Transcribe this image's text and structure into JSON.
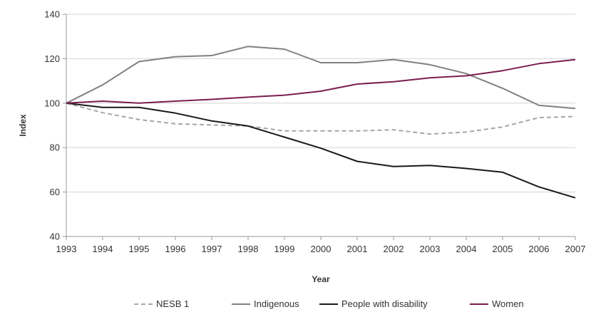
{
  "chart_data": {
    "type": "line",
    "title": "",
    "xlabel": "Year",
    "ylabel": "Index",
    "ylim": [
      40,
      140
    ],
    "yticks": [
      40,
      60,
      80,
      100,
      120,
      140
    ],
    "x": [
      "1993",
      "1994",
      "1995",
      "1996",
      "1997",
      "1998",
      "1999",
      "2000",
      "2001",
      "2002",
      "2003",
      "2004",
      "2005",
      "2006",
      "2007"
    ],
    "grid": "horizontal",
    "legend_position": "bottom",
    "series": [
      {
        "name": "NESB 1",
        "color": "#a6a6a6",
        "style": "dashed",
        "values": [
          100,
          95.7,
          92.6,
          90.7,
          90.2,
          89.7,
          87.5,
          87.5,
          87.5,
          88.0,
          86.1,
          87.0,
          89.3,
          93.5,
          94.0
        ]
      },
      {
        "name": "Indigenous",
        "color": "#808080",
        "style": "solid",
        "values": [
          100,
          108.2,
          118.7,
          120.9,
          121.4,
          125.5,
          124.3,
          118.2,
          118.2,
          119.6,
          117.3,
          113.3,
          106.7,
          99.0,
          97.6
        ]
      },
      {
        "name": "People with disability",
        "color": "#1a1a1a",
        "style": "solid",
        "values": [
          100,
          98.1,
          98.1,
          95.5,
          92.0,
          89.7,
          84.7,
          79.7,
          73.8,
          71.5,
          72.0,
          70.6,
          68.9,
          62.3,
          57.4
        ]
      },
      {
        "name": "Women",
        "color": "#7b1e4e",
        "style": "solid",
        "values": [
          100,
          100.9,
          100.0,
          100.9,
          101.7,
          102.7,
          103.6,
          105.4,
          108.6,
          109.6,
          111.4,
          112.3,
          114.6,
          117.8,
          119.6
        ]
      }
    ]
  }
}
